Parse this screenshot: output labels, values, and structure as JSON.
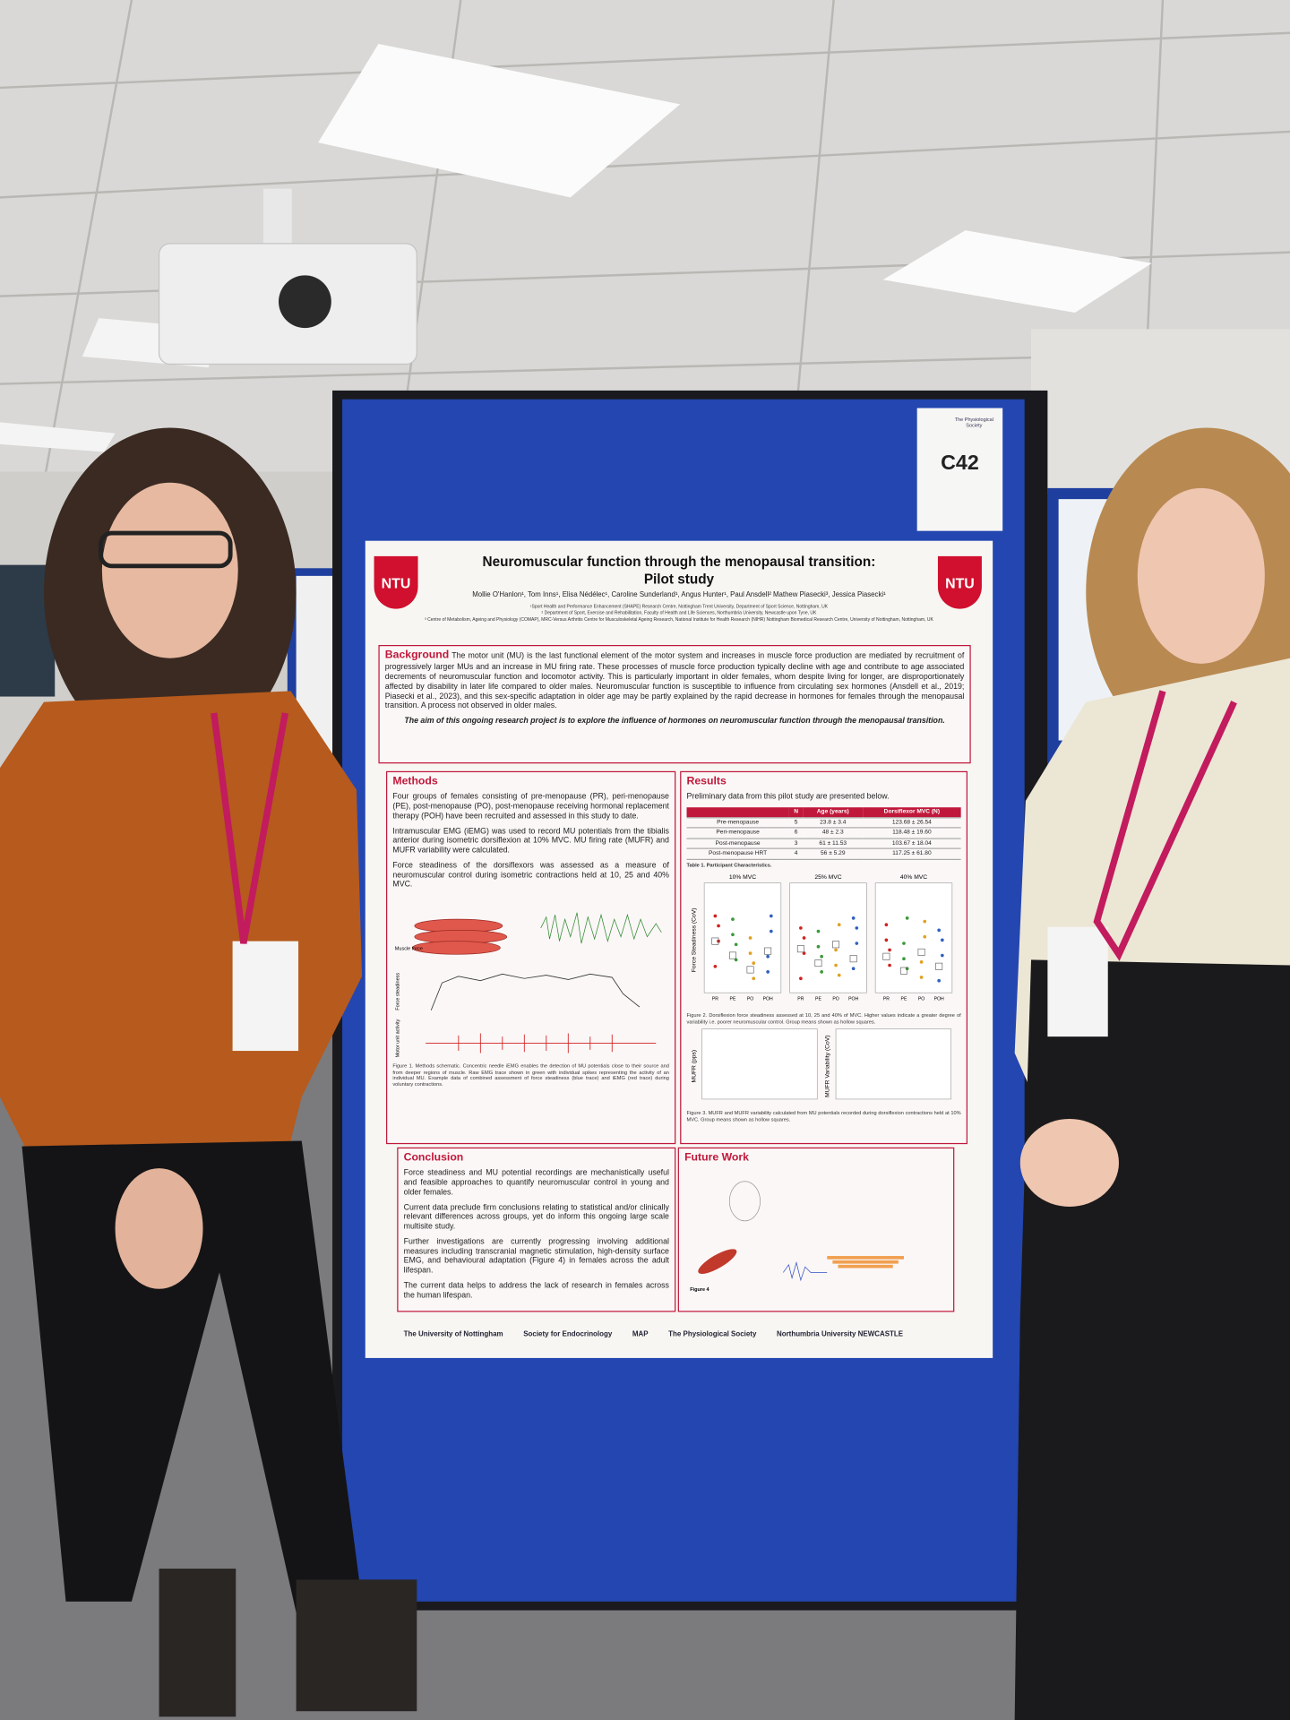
{
  "sign": {
    "code": "C42",
    "society": "The Physiological Society"
  },
  "poster": {
    "logo_left": "NTU",
    "logo_right": "NTU",
    "title": "Neuromuscular function through the menopausal transition:",
    "subtitle": "Pilot study",
    "authors": "Mollie O'Hanlon¹, Tom Inns¹, Elisa Nédélec¹, Caroline Sunderland¹, Angus Hunter¹, Paul Ansdell² Mathew Piasecki³, Jessica Piasecki¹",
    "affiliations": [
      "¹Sport Health and Performance Enhancement (SHAPE) Research Centre, Nottingham Trent University, Department of Sport Science, Nottingham, UK",
      "² Department of Sport, Exercise and Rehabilitation, Faculty of Health and Life Sciences, Northumbria University, Newcastle upon Tyne, UK",
      "³ Centre of Metabolism, Ageing and Physiology (COMAP), MRC-Versus Arthritis Centre for Musculoskeletal Ageing Research, National Institute for Health Research (NIHR) Nottingham Biomedical Research Centre, University of Nottingham, Nottingham, UK"
    ],
    "background": {
      "heading": "Background",
      "text": "The motor unit (MU) is the last functional element of the motor system and increases in muscle force production are mediated by recruitment of progressively larger MUs and an increase in MU firing rate. These processes of muscle force production typically decline with age and contribute to age associated decrements of neuromuscular function and locomotor activity. This is particularly important in older females, whom despite living for longer, are disproportionately affected by disability in later life compared to older males. Neuromuscular function is susceptible to influence from circulating sex hormones (Ansdell et al., 2019; Piasecki et al., 2023), and this sex-specific adaptation in older age may be partly explained by the rapid decrease in hormones for females through the menopausal transition. A process not observed in older males.",
      "aim": "The aim of this ongoing research project is to explore the influence of hormones on neuromuscular function through the menopausal transition."
    },
    "methods": {
      "heading": "Methods",
      "paragraphs": [
        "Four groups of females consisting of pre-menopause (PR), peri-menopause (PE), post-menopause (PO), post-menopause receiving hormonal replacement therapy (POH) have been recruited and assessed in this study to date.",
        "Intramuscular EMG (iEMG) was used to record MU potentials from the tibialis anterior during isometric dorsiflexion at 10% MVC. MU firing rate (MUFR) and MUFR variability were calculated.",
        "Force steadiness of the dorsiflexors was assessed as a measure of neuromuscular control during isometric contractions held at 10, 25 and 40% MVC."
      ],
      "figure_labels": [
        "Muscle force",
        "Force steadiness",
        "Motor unit activity"
      ],
      "caption": "Figure 1. Methods schematic. Concentric needle iEMG enables the detection of MU potentials close to their source and from deeper regions of muscle. Raw EMG trace shown in green with individual spikes representing the activity of an individual MU. Example data of combined assessment of force steadiness (blue trace) and iEMG (red trace) during voluntary contractions."
    },
    "results": {
      "heading": "Results",
      "intro": "Preliminary data from this pilot study are presented below.",
      "table": {
        "header": [
          "N",
          "Age (years)",
          "Dorsiflexor MVC (N)"
        ],
        "rows": [
          [
            "Pre-menopause",
            5,
            "23.8 ± 3.4",
            "123.68 ± 26.54"
          ],
          [
            "Peri-menopause",
            6,
            "48 ± 2.3",
            "118.48 ± 19.60"
          ],
          [
            "Post-menopause",
            3,
            "61 ± 11.53",
            "103.67 ± 18.04"
          ],
          [
            "Post-menopause HRT",
            4,
            "56 ± 5.29",
            "117.25 ± 61.80"
          ]
        ]
      },
      "table_caption": "Table 1. Participant Characteristics.",
      "fig2_panels": [
        "10% MVC",
        "25% MVC",
        "40% MVC"
      ],
      "fig2_ylabel": "Force Steadiness (CoV)",
      "fig2_groups": [
        "PR",
        "PE",
        "PO",
        "POH"
      ],
      "fig2_caption": "Figure 2. Dorsiflexion force steadiness assessed at 10, 25 and 40% of MVC. Higher values indicate a greater degree of variability i.e. poorer neuromuscular control. Group means shown as hollow squares.",
      "fig3_ylabels": [
        "MUFR (pps)",
        "MUFR Variability (CoV)"
      ],
      "fig3_caption": "Figure 3. MUFR and MUFR variability calculated from MU potentials recorded during dorsiflexion contractions held at 10% MVC. Group means shown as hollow squares."
    },
    "conclusion": {
      "heading": "Conclusion",
      "paragraphs": [
        "Force steadiness and MU potential recordings are mechanistically useful and feasible approaches to quantify neuromuscular control in young and older females.",
        "Current data preclude firm conclusions relating to statistical and/or clinically relevant differences across groups, yet do inform this ongoing large scale multisite study.",
        "Further investigations are currently progressing involving additional measures including transcranial magnetic stimulation, high-density surface EMG, and behavioural adaptation (Figure 4) in females across the adult lifespan.",
        "The current data helps to address the lack of research in females across the human lifespan."
      ]
    },
    "future_work": {
      "heading": "Future Work",
      "caption": "Figure 4"
    },
    "logos": [
      "The University of Nottingham",
      "Society for Endocrinology",
      "MAP",
      "The Physiological Society",
      "Northumbria University NEWCASTLE"
    ]
  }
}
